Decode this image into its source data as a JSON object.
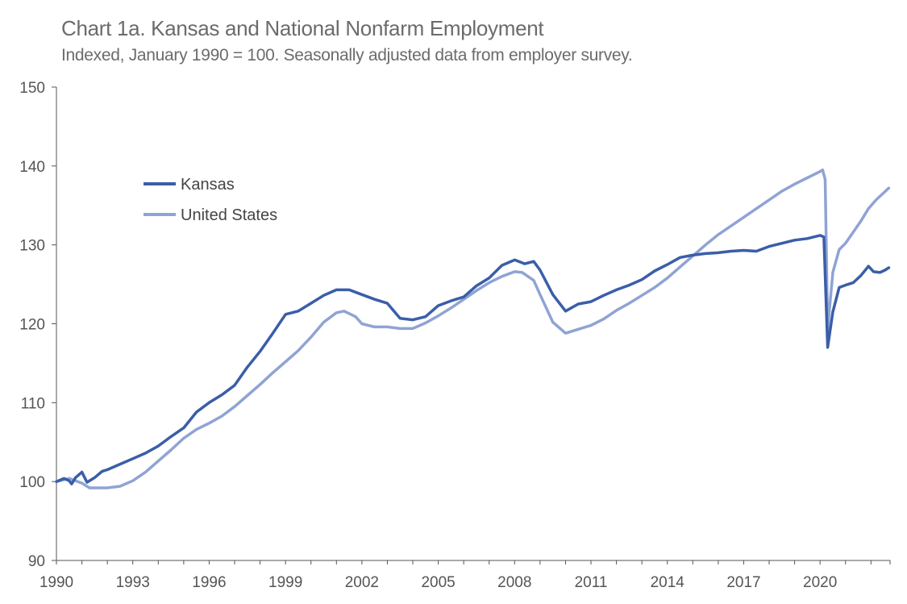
{
  "title": "Chart 1a. Kansas and National Nonfarm Employment",
  "subtitle": "Indexed, January 1990 = 100. Seasonally adjusted data from employer survey.",
  "colors": {
    "kansas": "#3a5ea8",
    "us": "#8fa3d4",
    "axis": "#555555"
  },
  "chart_data": {
    "type": "line",
    "xlim": [
      1990,
      2022.75
    ],
    "ylim": [
      90,
      150
    ],
    "yticks": [
      90,
      100,
      110,
      120,
      130,
      140,
      150
    ],
    "xticks": [
      1990,
      1993,
      1996,
      1999,
      2002,
      2005,
      2008,
      2011,
      2014,
      2017,
      2020
    ],
    "grid": false,
    "legend_position": "upper-left",
    "series": [
      {
        "name": "Kansas",
        "color": "#3a5ea8",
        "points": [
          [
            1990.0,
            100.0
          ],
          [
            1990.3,
            100.4
          ],
          [
            1990.5,
            100.1
          ],
          [
            1990.6,
            99.7
          ],
          [
            1990.75,
            100.5
          ],
          [
            1991.0,
            101.2
          ],
          [
            1991.2,
            99.9
          ],
          [
            1991.5,
            100.5
          ],
          [
            1991.8,
            101.3
          ],
          [
            1992.0,
            101.5
          ],
          [
            1992.5,
            102.2
          ],
          [
            1993.0,
            102.9
          ],
          [
            1993.5,
            103.6
          ],
          [
            1994.0,
            104.5
          ],
          [
            1994.5,
            105.7
          ],
          [
            1995.0,
            106.8
          ],
          [
            1995.5,
            108.8
          ],
          [
            1996.0,
            110.0
          ],
          [
            1996.5,
            111.0
          ],
          [
            1997.0,
            112.2
          ],
          [
            1997.5,
            114.5
          ],
          [
            1998.0,
            116.5
          ],
          [
            1998.5,
            118.8
          ],
          [
            1999.0,
            121.2
          ],
          [
            1999.5,
            121.6
          ],
          [
            2000.0,
            122.6
          ],
          [
            2000.5,
            123.6
          ],
          [
            2001.0,
            124.3
          ],
          [
            2001.5,
            124.3
          ],
          [
            2002.0,
            123.7
          ],
          [
            2002.5,
            123.1
          ],
          [
            2003.0,
            122.6
          ],
          [
            2003.5,
            120.7
          ],
          [
            2004.0,
            120.5
          ],
          [
            2004.5,
            120.9
          ],
          [
            2005.0,
            122.3
          ],
          [
            2005.5,
            122.9
          ],
          [
            2006.0,
            123.4
          ],
          [
            2006.5,
            124.8
          ],
          [
            2007.0,
            125.8
          ],
          [
            2007.5,
            127.4
          ],
          [
            2008.0,
            128.1
          ],
          [
            2008.4,
            127.6
          ],
          [
            2008.75,
            127.9
          ],
          [
            2009.0,
            126.8
          ],
          [
            2009.5,
            123.7
          ],
          [
            2010.0,
            121.6
          ],
          [
            2010.5,
            122.5
          ],
          [
            2011.0,
            122.8
          ],
          [
            2011.5,
            123.6
          ],
          [
            2012.0,
            124.3
          ],
          [
            2012.5,
            124.9
          ],
          [
            2013.0,
            125.6
          ],
          [
            2013.5,
            126.7
          ],
          [
            2014.0,
            127.5
          ],
          [
            2014.5,
            128.4
          ],
          [
            2015.0,
            128.7
          ],
          [
            2015.5,
            128.9
          ],
          [
            2016.0,
            129.0
          ],
          [
            2016.5,
            129.2
          ],
          [
            2017.0,
            129.3
          ],
          [
            2017.5,
            129.2
          ],
          [
            2018.0,
            129.8
          ],
          [
            2018.5,
            130.2
          ],
          [
            2019.0,
            130.6
          ],
          [
            2019.5,
            130.8
          ],
          [
            2020.0,
            131.2
          ],
          [
            2020.15,
            131.0
          ],
          [
            2020.3,
            117.0
          ],
          [
            2020.5,
            121.5
          ],
          [
            2020.75,
            124.6
          ],
          [
            2021.0,
            124.9
          ],
          [
            2021.3,
            125.2
          ],
          [
            2021.6,
            126.1
          ],
          [
            2021.9,
            127.3
          ],
          [
            2022.1,
            126.6
          ],
          [
            2022.35,
            126.5
          ],
          [
            2022.55,
            126.8
          ],
          [
            2022.7,
            127.1
          ]
        ]
      },
      {
        "name": "United States",
        "color": "#8fa3d4",
        "points": [
          [
            1990.0,
            100.0
          ],
          [
            1990.5,
            100.4
          ],
          [
            1991.0,
            99.8
          ],
          [
            1991.3,
            99.2
          ],
          [
            1991.75,
            99.2
          ],
          [
            1992.0,
            99.2
          ],
          [
            1992.5,
            99.4
          ],
          [
            1993.0,
            100.1
          ],
          [
            1993.5,
            101.2
          ],
          [
            1994.0,
            102.6
          ],
          [
            1994.5,
            104.0
          ],
          [
            1995.0,
            105.5
          ],
          [
            1995.5,
            106.6
          ],
          [
            1996.0,
            107.4
          ],
          [
            1996.5,
            108.3
          ],
          [
            1997.0,
            109.5
          ],
          [
            1997.5,
            110.9
          ],
          [
            1998.0,
            112.3
          ],
          [
            1998.5,
            113.8
          ],
          [
            1999.0,
            115.2
          ],
          [
            1999.5,
            116.6
          ],
          [
            2000.0,
            118.3
          ],
          [
            2000.5,
            120.2
          ],
          [
            2001.0,
            121.4
          ],
          [
            2001.3,
            121.6
          ],
          [
            2001.75,
            120.9
          ],
          [
            2002.0,
            120.0
          ],
          [
            2002.5,
            119.6
          ],
          [
            2003.0,
            119.6
          ],
          [
            2003.5,
            119.4
          ],
          [
            2004.0,
            119.4
          ],
          [
            2004.5,
            120.1
          ],
          [
            2005.0,
            121.0
          ],
          [
            2005.5,
            122.0
          ],
          [
            2006.0,
            123.1
          ],
          [
            2006.5,
            124.2
          ],
          [
            2007.0,
            125.2
          ],
          [
            2007.5,
            126.0
          ],
          [
            2008.0,
            126.6
          ],
          [
            2008.3,
            126.5
          ],
          [
            2008.75,
            125.5
          ],
          [
            2009.0,
            123.7
          ],
          [
            2009.5,
            120.2
          ],
          [
            2010.0,
            118.8
          ],
          [
            2010.5,
            119.3
          ],
          [
            2011.0,
            119.8
          ],
          [
            2011.5,
            120.6
          ],
          [
            2012.0,
            121.7
          ],
          [
            2012.5,
            122.6
          ],
          [
            2013.0,
            123.6
          ],
          [
            2013.5,
            124.6
          ],
          [
            2014.0,
            125.8
          ],
          [
            2014.5,
            127.2
          ],
          [
            2015.0,
            128.6
          ],
          [
            2015.5,
            130.0
          ],
          [
            2016.0,
            131.3
          ],
          [
            2016.5,
            132.4
          ],
          [
            2017.0,
            133.5
          ],
          [
            2017.5,
            134.6
          ],
          [
            2018.0,
            135.7
          ],
          [
            2018.5,
            136.8
          ],
          [
            2019.0,
            137.7
          ],
          [
            2019.5,
            138.5
          ],
          [
            2020.0,
            139.3
          ],
          [
            2020.1,
            139.5
          ],
          [
            2020.2,
            138.3
          ],
          [
            2020.3,
            119.3
          ],
          [
            2020.5,
            126.5
          ],
          [
            2020.75,
            129.4
          ],
          [
            2021.0,
            130.2
          ],
          [
            2021.3,
            131.6
          ],
          [
            2021.6,
            133.0
          ],
          [
            2021.9,
            134.6
          ],
          [
            2022.2,
            135.7
          ],
          [
            2022.5,
            136.6
          ],
          [
            2022.7,
            137.2
          ]
        ]
      }
    ]
  }
}
